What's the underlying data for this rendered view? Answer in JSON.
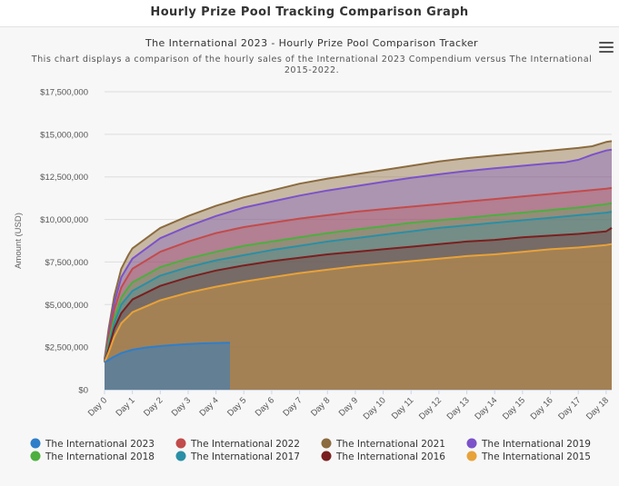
{
  "page": {
    "heading": "Hourly Prize Pool Tracking Comparison Graph"
  },
  "chart_data": {
    "type": "area",
    "title": "The International 2023 - Hourly Prize Pool Comparison Tracker",
    "subtitle_lines": [
      "This chart displays a comparison of the hourly sales of the International 2023 Compendium versus The International",
      "2015-2022."
    ],
    "ylabel": "Amount (USD)",
    "xlabel": "",
    "ylim": [
      0,
      17500000
    ],
    "xlim": [
      0,
      18.2
    ],
    "y_ticks": [
      0,
      2500000,
      5000000,
      7500000,
      10000000,
      12500000,
      15000000,
      17500000
    ],
    "y_tick_labels": [
      "$0",
      "$2,500,000",
      "$5,000,000",
      "$7,500,000",
      "$10,000,000",
      "$12,500,000",
      "$15,000,000",
      "$17,500,000"
    ],
    "x_ticks": [
      0,
      1,
      2,
      3,
      4,
      5,
      6,
      7,
      8,
      9,
      10,
      11,
      12,
      13,
      14,
      15,
      16,
      17,
      18
    ],
    "x_tick_labels": [
      "Day 0",
      "Day 1",
      "Day 2",
      "Day 3",
      "Day 4",
      "Day 5",
      "Day 6",
      "Day 7",
      "Day 8",
      "Day 9",
      "Day 10",
      "Day 11",
      "Day 12",
      "Day 13",
      "Day 14",
      "Day 15",
      "Day 16",
      "Day 17",
      "Day 18"
    ],
    "grid": true,
    "legend_position": "bottom",
    "series": [
      {
        "name": "The International 2021",
        "color": "#8b6b3f",
        "fill_opacity": 0.45,
        "x": [
          0,
          0.15,
          0.35,
          0.6,
          0.85,
          1,
          2,
          3,
          4,
          5,
          6,
          7,
          8,
          9,
          10,
          11,
          12,
          13,
          14,
          15,
          16,
          17,
          17.5,
          18,
          18.2
        ],
        "y": [
          1800000,
          3600000,
          5500000,
          7100000,
          7900000,
          8300000,
          9500000,
          10200000,
          10800000,
          11300000,
          11700000,
          12100000,
          12400000,
          12650000,
          12900000,
          13150000,
          13400000,
          13600000,
          13750000,
          13900000,
          14050000,
          14200000,
          14300000,
          14550000,
          14600000
        ]
      },
      {
        "name": "The International 2019",
        "color": "#7b52c9",
        "fill_opacity": 0.35,
        "x": [
          0,
          0.15,
          0.35,
          0.6,
          0.85,
          1,
          2,
          3,
          4,
          5,
          6,
          7,
          8,
          9,
          10,
          11,
          12,
          13,
          14,
          15,
          16,
          16.5,
          17,
          17.5,
          18,
          18.2
        ],
        "y": [
          1700000,
          3300000,
          5100000,
          6600000,
          7300000,
          7700000,
          8900000,
          9600000,
          10200000,
          10700000,
          11050000,
          11400000,
          11700000,
          11950000,
          12200000,
          12450000,
          12650000,
          12850000,
          13000000,
          13150000,
          13300000,
          13350000,
          13500000,
          13800000,
          14050000,
          14100000
        ]
      },
      {
        "name": "The International 2022",
        "color": "#c24b4b",
        "fill_opacity": 0.3,
        "x": [
          0,
          0.15,
          0.35,
          0.6,
          0.85,
          1,
          2,
          3,
          4,
          5,
          6,
          7,
          8,
          9,
          10,
          11,
          12,
          13,
          14,
          15,
          16,
          17,
          18,
          18.2
        ],
        "y": [
          1650000,
          3100000,
          4700000,
          6000000,
          6700000,
          7100000,
          8100000,
          8700000,
          9200000,
          9550000,
          9800000,
          10050000,
          10250000,
          10450000,
          10600000,
          10750000,
          10900000,
          11050000,
          11200000,
          11350000,
          11500000,
          11650000,
          11800000,
          11850000
        ]
      },
      {
        "name": "The International 2018",
        "color": "#4caf3f",
        "fill_opacity": 0.3,
        "x": [
          0,
          0.15,
          0.35,
          0.6,
          0.85,
          1,
          2,
          3,
          4,
          5,
          6,
          7,
          8,
          9,
          10,
          11,
          12,
          13,
          14,
          15,
          16,
          17,
          18,
          18.2
        ],
        "y": [
          1600000,
          2800000,
          4200000,
          5400000,
          6000000,
          6300000,
          7200000,
          7700000,
          8100000,
          8450000,
          8700000,
          8950000,
          9200000,
          9400000,
          9600000,
          9800000,
          9950000,
          10100000,
          10250000,
          10400000,
          10550000,
          10700000,
          10900000,
          10950000
        ]
      },
      {
        "name": "The International 2017",
        "color": "#2a8fa6",
        "fill_opacity": 0.3,
        "x": [
          0,
          0.15,
          0.35,
          0.6,
          0.85,
          1,
          2,
          3,
          4,
          5,
          6,
          7,
          8,
          9,
          10,
          11,
          12,
          13,
          14,
          15,
          16,
          17,
          18,
          18.2
        ],
        "y": [
          1600000,
          2600000,
          3900000,
          5000000,
          5500000,
          5800000,
          6700000,
          7200000,
          7600000,
          7900000,
          8200000,
          8450000,
          8700000,
          8900000,
          9100000,
          9300000,
          9500000,
          9650000,
          9800000,
          9950000,
          10100000,
          10250000,
          10400000,
          10450000
        ]
      },
      {
        "name": "The International 2016",
        "color": "#7a1f1f",
        "fill_opacity": 0.3,
        "x": [
          0,
          0.15,
          0.35,
          0.6,
          0.85,
          1,
          2,
          3,
          4,
          5,
          6,
          7,
          8,
          9,
          10,
          11,
          12,
          13,
          14,
          15,
          16,
          17,
          18,
          18.2
        ],
        "y": [
          1600000,
          2400000,
          3600000,
          4500000,
          5000000,
          5300000,
          6100000,
          6600000,
          7000000,
          7300000,
          7550000,
          7750000,
          7950000,
          8100000,
          8250000,
          8400000,
          8550000,
          8700000,
          8800000,
          8950000,
          9050000,
          9150000,
          9300000,
          9500000
        ]
      },
      {
        "name": "The International 2015",
        "color": "#e8a23a",
        "fill_opacity": 0.4,
        "x": [
          0,
          0.15,
          0.35,
          0.6,
          0.85,
          1,
          2,
          3,
          4,
          5,
          6,
          7,
          8,
          9,
          10,
          11,
          12,
          13,
          14,
          15,
          16,
          17,
          18,
          18.2
        ],
        "y": [
          1600000,
          2200000,
          3100000,
          3900000,
          4300000,
          4550000,
          5250000,
          5700000,
          6050000,
          6350000,
          6600000,
          6850000,
          7050000,
          7250000,
          7400000,
          7550000,
          7700000,
          7850000,
          7950000,
          8100000,
          8250000,
          8350000,
          8500000,
          8550000
        ]
      },
      {
        "name": "The International 2023",
        "color": "#2f7ec9",
        "fill_opacity": 0.55,
        "x": [
          0,
          0.3,
          0.6,
          1,
          1.5,
          2,
          2.5,
          3,
          3.5,
          4,
          4.5
        ],
        "y": [
          1600000,
          1900000,
          2150000,
          2350000,
          2480000,
          2560000,
          2630000,
          2680000,
          2720000,
          2740000,
          2760000
        ]
      }
    ],
    "legend_order": [
      "The International 2023",
      "The International 2022",
      "The International 2021",
      "The International 2019",
      "The International 2018",
      "The International 2017",
      "The International 2016",
      "The International 2015"
    ]
  }
}
